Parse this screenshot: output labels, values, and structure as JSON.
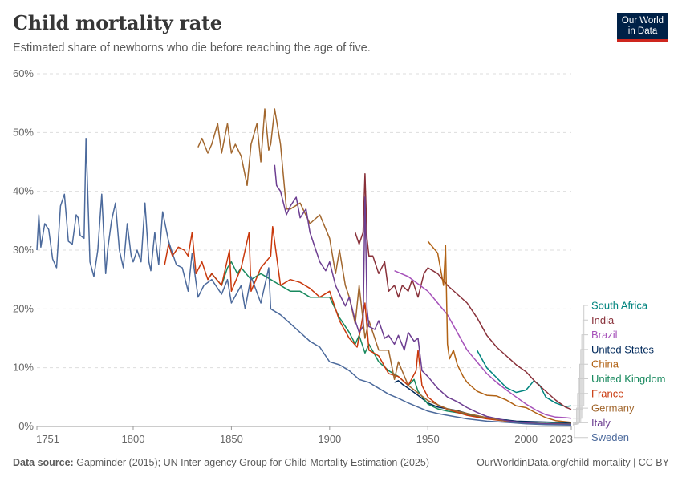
{
  "header": {
    "title": "Child mortality rate",
    "subtitle": "Estimated share of newborns who die before reaching the age of five.",
    "logo_line1": "Our World",
    "logo_line2": "in Data"
  },
  "footer": {
    "source_label": "Data source:",
    "source_text": "Gapminder (2015); UN Inter-agency Group for Child Mortality Estimation (2025)",
    "url_text": "OurWorldinData.org/child-mortality | CC BY"
  },
  "colors": {
    "brand": "#002147",
    "brand_accent": "#ce261e"
  },
  "chart_data": {
    "type": "line",
    "title": "Child mortality rate",
    "subtitle": "Estimated share of newborns who die before reaching the age of five.",
    "xlabel": "",
    "ylabel": "",
    "xlim": [
      1751,
      2023
    ],
    "ylim": [
      0,
      60
    ],
    "x_ticks": [
      1751,
      1800,
      1850,
      1900,
      1950,
      2000,
      2023
    ],
    "y_ticks": [
      0,
      10,
      20,
      30,
      40,
      50,
      60
    ],
    "y_tick_labels": [
      "0%",
      "10%",
      "20%",
      "30%",
      "40%",
      "50%",
      "60%"
    ],
    "grid": "horizontal dashed",
    "legend": "right, end-of-line labels",
    "series": [
      {
        "name": "South Africa",
        "color": "#00847e",
        "x": [
          1975,
          1980,
          1985,
          1990,
          1995,
          2000,
          2004,
          2007,
          2010,
          2015,
          2020,
          2023
        ],
        "y": [
          13.0,
          10.0,
          8.3,
          6.6,
          5.8,
          6.2,
          7.8,
          7.0,
          5.0,
          4.0,
          3.4,
          3.5
        ]
      },
      {
        "name": "India",
        "color": "#883039",
        "x": [
          1913,
          1915,
          1917,
          1918,
          1919,
          1920,
          1922,
          1925,
          1928,
          1930,
          1933,
          1935,
          1937,
          1940,
          1942,
          1945,
          1948,
          1950,
          1955,
          1960,
          1965,
          1970,
          1975,
          1980,
          1985,
          1990,
          1995,
          2000,
          2005,
          2010,
          2015,
          2020,
          2023
        ],
        "y": [
          33,
          31,
          33,
          43,
          32,
          29,
          29,
          26,
          28,
          23,
          24,
          22,
          24,
          23,
          25,
          22,
          26,
          27,
          26,
          24,
          22.5,
          21,
          18.5,
          15.5,
          13.5,
          12,
          10.5,
          9.3,
          7.5,
          6,
          4.5,
          3.3,
          2.9
        ]
      },
      {
        "name": "Brazil",
        "color": "#a652ba",
        "x": [
          1933,
          1940,
          1950,
          1955,
          1960,
          1965,
          1970,
          1975,
          1980,
          1985,
          1990,
          1995,
          2000,
          2005,
          2010,
          2015,
          2020,
          2023
        ],
        "y": [
          26.5,
          25.5,
          23,
          21,
          19,
          16,
          13,
          11,
          9,
          7.5,
          6.2,
          5,
          3.8,
          2.8,
          2.0,
          1.6,
          1.5,
          1.4
        ]
      },
      {
        "name": "United States",
        "color": "#00295b",
        "x": [
          1933,
          1935,
          1937,
          1940,
          1945,
          1950,
          1955,
          1960,
          1965,
          1970,
          1975,
          1980,
          1985,
          1990,
          1995,
          2000,
          2005,
          2010,
          2015,
          2020,
          2023
        ],
        "y": [
          7.5,
          7.8,
          7.2,
          6.5,
          5.3,
          4.0,
          3.3,
          3.0,
          2.7,
          2.2,
          1.8,
          1.5,
          1.2,
          1.1,
          0.9,
          0.85,
          0.8,
          0.75,
          0.7,
          0.65,
          0.63
        ]
      },
      {
        "name": "China",
        "color": "#b16214",
        "x": [
          1950,
          1955,
          1958,
          1959,
          1960,
          1961,
          1963,
          1965,
          1968,
          1970,
          1975,
          1980,
          1985,
          1990,
          1995,
          2000,
          2005,
          2010,
          2015,
          2020,
          2023
        ],
        "y": [
          31.5,
          29.5,
          24,
          30.8,
          14,
          11.5,
          13,
          10.5,
          8.5,
          7.5,
          6,
          5.3,
          5.2,
          4.5,
          3.5,
          3.2,
          2.3,
          1.5,
          1.0,
          0.8,
          0.7
        ]
      },
      {
        "name": "United Kingdom",
        "color": "#18895e",
        "x": [
          1838,
          1840,
          1845,
          1848,
          1850,
          1853,
          1855,
          1860,
          1865,
          1870,
          1875,
          1880,
          1885,
          1890,
          1895,
          1900,
          1905,
          1910,
          1913,
          1915,
          1918,
          1920,
          1925,
          1930,
          1935,
          1940,
          1943,
          1945,
          1950,
          1955,
          1960,
          1970,
          1980,
          1990,
          2000,
          2010,
          2023
        ],
        "y": [
          25,
          26,
          24,
          27,
          28,
          26,
          27,
          25,
          26,
          25,
          24,
          23,
          23,
          22,
          22,
          22,
          18.5,
          16,
          14,
          15.5,
          12.5,
          14,
          11,
          9.5,
          8.5,
          7,
          8,
          6,
          3.8,
          3.0,
          2.6,
          2.1,
          1.4,
          0.9,
          0.65,
          0.5,
          0.45
        ]
      },
      {
        "name": "France",
        "color": "#c9380c",
        "x": [
          1816,
          1818,
          1820,
          1823,
          1826,
          1828,
          1830,
          1832,
          1835,
          1838,
          1840,
          1845,
          1849,
          1850,
          1855,
          1859,
          1860,
          1865,
          1870,
          1871,
          1875,
          1880,
          1885,
          1890,
          1895,
          1900,
          1905,
          1910,
          1914,
          1916,
          1918,
          1920,
          1925,
          1930,
          1935,
          1940,
          1944,
          1945,
          1947,
          1950,
          1955,
          1960,
          1970,
          1980,
          1990,
          2000,
          2010,
          2023
        ],
        "y": [
          27.5,
          31,
          29,
          30.5,
          30,
          29,
          33,
          26,
          28,
          25,
          26,
          24,
          30,
          23,
          27,
          33,
          23,
          27,
          29,
          34,
          24,
          25,
          24.5,
          23.5,
          22,
          23,
          18,
          15,
          13.5,
          17,
          21,
          13,
          12,
          9,
          8.5,
          7,
          9.5,
          13,
          7,
          5.0,
          3.7,
          2.9,
          1.9,
          1.3,
          0.9,
          0.55,
          0.45,
          0.4
        ]
      },
      {
        "name": "Germany",
        "color": "#a2672e",
        "x": [
          1833,
          1835,
          1838,
          1840,
          1843,
          1845,
          1848,
          1850,
          1852,
          1855,
          1858,
          1860,
          1863,
          1865,
          1867,
          1869,
          1870,
          1872,
          1875,
          1878,
          1880,
          1885,
          1890,
          1895,
          1900,
          1903,
          1905,
          1908,
          1910,
          1913,
          1915,
          1918,
          1920,
          1925,
          1930,
          1933,
          1935,
          1940,
          1950,
          1960,
          1970,
          1980,
          1990,
          2000,
          2010,
          2023
        ],
        "y": [
          47.5,
          49,
          46.5,
          48,
          51.5,
          46.5,
          51.5,
          46.5,
          48,
          46,
          41,
          48,
          51.5,
          45,
          54,
          47,
          48,
          54,
          48,
          37,
          37,
          38,
          34.5,
          36,
          32,
          26,
          30,
          24,
          22,
          17.5,
          24,
          15,
          18,
          13,
          13,
          8,
          11,
          7,
          4.4,
          3.0,
          2.2,
          1.5,
          0.9,
          0.6,
          0.45,
          0.35
        ]
      },
      {
        "name": "Italy",
        "color": "#6d3e91",
        "x": [
          1872,
          1873,
          1875,
          1878,
          1880,
          1883,
          1885,
          1888,
          1890,
          1893,
          1895,
          1898,
          1900,
          1903,
          1905,
          1908,
          1910,
          1913,
          1915,
          1917,
          1918,
          1919,
          1920,
          1923,
          1925,
          1928,
          1930,
          1933,
          1935,
          1938,
          1940,
          1943,
          1945,
          1947,
          1950,
          1955,
          1960,
          1965,
          1970,
          1975,
          1980,
          1990,
          2000,
          2010,
          2023
        ],
        "y": [
          44.5,
          41,
          40,
          36,
          37.5,
          39,
          35.5,
          37,
          33,
          30,
          28,
          26.5,
          28,
          24,
          22.5,
          20.5,
          22,
          18,
          16,
          17,
          39,
          20,
          17,
          16.5,
          18,
          15,
          15.5,
          14,
          15.5,
          13,
          16,
          14.5,
          15,
          9.5,
          8.5,
          6.5,
          5.0,
          4.2,
          3.2,
          2.4,
          1.7,
          1.0,
          0.6,
          0.45,
          0.35
        ]
      },
      {
        "name": "Sweden",
        "color": "#4c6a9c",
        "x": [
          1751,
          1752,
          1753,
          1755,
          1757,
          1759,
          1761,
          1763,
          1765,
          1767,
          1769,
          1771,
          1772,
          1773,
          1775,
          1776,
          1778,
          1780,
          1782,
          1784,
          1786,
          1787,
          1789,
          1791,
          1793,
          1795,
          1797,
          1799,
          1800,
          1802,
          1804,
          1806,
          1808,
          1809,
          1811,
          1813,
          1815,
          1818,
          1820,
          1822,
          1825,
          1828,
          1830,
          1833,
          1836,
          1840,
          1845,
          1848,
          1850,
          1855,
          1857,
          1860,
          1865,
          1869,
          1870,
          1875,
          1880,
          1885,
          1890,
          1895,
          1900,
          1905,
          1910,
          1915,
          1920,
          1925,
          1930,
          1935,
          1940,
          1945,
          1950,
          1955,
          1960,
          1970,
          1980,
          1990,
          2000,
          2010,
          2023
        ],
        "y": [
          30,
          36,
          30.5,
          34.5,
          33.5,
          28.5,
          27,
          37.5,
          39.5,
          31.5,
          31,
          36,
          35.5,
          32.5,
          32,
          49,
          28,
          25.5,
          30,
          39.5,
          26,
          30,
          35,
          38,
          30,
          27,
          34.5,
          29,
          28,
          30,
          28,
          38,
          28,
          26.5,
          33,
          27.5,
          36.5,
          31.5,
          29.5,
          27.5,
          27,
          23,
          29.5,
          22,
          24,
          25,
          22.5,
          25,
          21,
          24,
          20,
          25.5,
          21,
          27,
          20,
          19,
          17.5,
          16,
          14.5,
          13.5,
          11,
          10.5,
          9.5,
          8,
          7.5,
          6.5,
          5.5,
          4.8,
          4,
          3.3,
          2.6,
          2.2,
          1.9,
          1.3,
          0.9,
          0.7,
          0.45,
          0.3,
          0.25
        ]
      }
    ]
  }
}
